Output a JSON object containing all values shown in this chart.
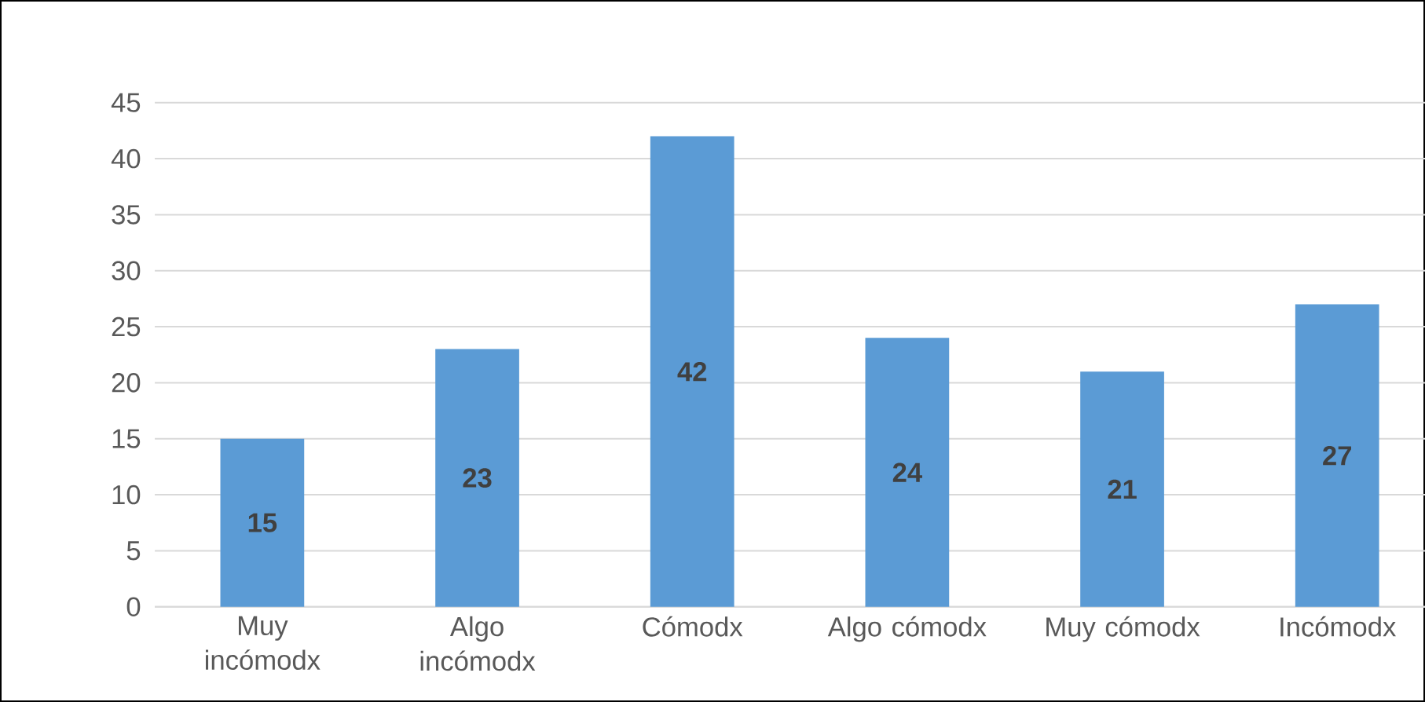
{
  "chart_data": {
    "type": "bar",
    "categories": [
      "Muy incómodx",
      "Algo incómodx",
      "Cómodx",
      "Algo cómodx",
      "Muy cómodx",
      "Incómodx"
    ],
    "values": [
      15,
      23,
      42,
      24,
      21,
      27
    ],
    "color": "#5b9bd5",
    "ylim": [
      0,
      45
    ],
    "yticks": [
      0,
      5,
      10,
      15,
      20,
      25,
      30,
      35,
      40,
      45
    ],
    "grid": "y",
    "data_labels": true
  }
}
